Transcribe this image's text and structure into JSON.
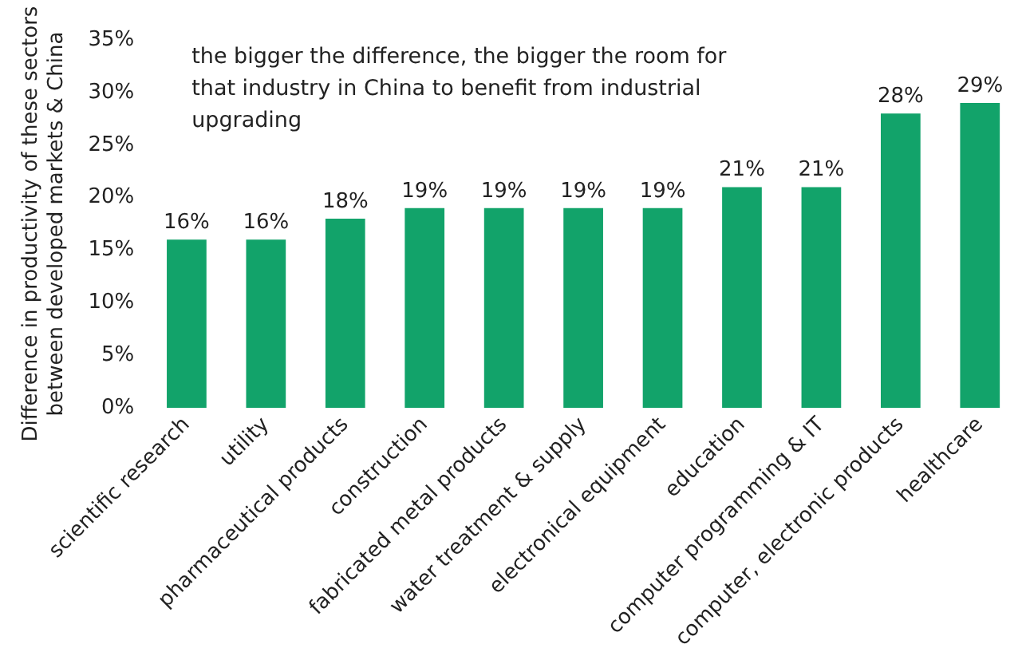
{
  "chart_data": {
    "type": "bar",
    "ylabel": "Difference in productivity of these sectors between developed markets & China",
    "categories": [
      "scientific research",
      "utility",
      "pharmaceutical products",
      "construction",
      "fabricated metal products",
      "water treatment & supply",
      "electronical equipment",
      "education",
      "computer programming & IT",
      "computer, electronic products",
      "healthcare"
    ],
    "values": [
      16,
      16,
      18,
      19,
      19,
      19,
      19,
      21,
      21,
      28,
      29
    ],
    "value_labels": [
      "16%",
      "16%",
      "18%",
      "19%",
      "19%",
      "19%",
      "19%",
      "21%",
      "21%",
      "28%",
      "29%"
    ],
    "color": "#12a36a",
    "ylim": [
      0,
      35
    ],
    "yticks": [
      {
        "value": 0,
        "label": "0%"
      },
      {
        "value": 5,
        "label": "5%"
      },
      {
        "value": 10,
        "label": "10%"
      },
      {
        "value": 15,
        "label": "15%"
      },
      {
        "value": 20,
        "label": "20%"
      },
      {
        "value": 25,
        "label": "25%"
      },
      {
        "value": 30,
        "label": "30%"
      },
      {
        "value": 35,
        "label": "35%"
      }
    ],
    "annotations": [
      "the bigger the difference, the bigger the room for that industry in China to benefit from industrial upgrading"
    ],
    "grid": false
  }
}
